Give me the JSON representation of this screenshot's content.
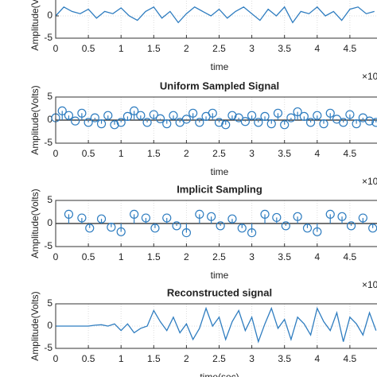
{
  "chart_data": [
    {
      "type": "line",
      "ylabel": "Amplitude(Volts)",
      "xlabel": "time",
      "x_multiplier": "×10",
      "x": [
        0,
        0.125,
        0.25,
        0.375,
        0.5,
        0.625,
        0.75,
        0.875,
        1,
        1.125,
        1.25,
        1.375,
        1.5,
        1.625,
        1.75,
        1.875,
        2,
        2.125,
        2.25,
        2.375,
        2.5,
        2.625,
        2.75,
        2.875,
        3,
        3.125,
        3.25,
        3.375,
        3.5,
        3.625,
        3.75,
        3.875,
        4,
        4.125,
        4.25,
        4.375,
        4.5,
        4.625,
        4.75,
        4.875
      ],
      "series": [
        {
          "color": "#2f7dc0",
          "values": [
            0,
            2,
            1,
            0.5,
            1.5,
            -0.5,
            1,
            0.5,
            1.8,
            0,
            -1,
            1,
            2,
            -0.5,
            1,
            -1.5,
            0.5,
            2,
            1,
            0,
            1.5,
            -0.5,
            1,
            2,
            0.5,
            -1,
            1.5,
            0,
            2,
            -1.5,
            1,
            0.5,
            2,
            0,
            1,
            -1,
            1.5,
            2,
            0.5,
            1
          ]
        }
      ],
      "xlim": [
        0,
        5
      ],
      "ylim": [
        -5,
        5
      ],
      "xticks": [
        0,
        0.5,
        1,
        1.5,
        2,
        2.5,
        3,
        3.5,
        4,
        4.5
      ],
      "yticks": [
        -5,
        0
      ],
      "grid": true
    },
    {
      "type": "stem",
      "title": "Uniform Sampled Signal",
      "ylabel": "Amplitude(Volts)",
      "xlabel": "time",
      "x_multiplier": "×10",
      "x": [
        0,
        0.1,
        0.2,
        0.3,
        0.4,
        0.5,
        0.6,
        0.7,
        0.8,
        0.9,
        1,
        1.1,
        1.2,
        1.3,
        1.4,
        1.5,
        1.6,
        1.7,
        1.8,
        1.9,
        2,
        2.1,
        2.2,
        2.3,
        2.4,
        2.5,
        2.6,
        2.7,
        2.8,
        2.9,
        3,
        3.1,
        3.2,
        3.3,
        3.4,
        3.5,
        3.6,
        3.7,
        3.8,
        3.9,
        4,
        4.1,
        4.2,
        4.3,
        4.4,
        4.5,
        4.6,
        4.7,
        4.8,
        4.9
      ],
      "series": [
        {
          "color": "#2f7dc0",
          "values": [
            0.5,
            2,
            1,
            -0.2,
            1.5,
            -0.5,
            0.5,
            -0.8,
            1,
            -1,
            -0.5,
            0.8,
            2,
            1,
            -0.5,
            1.2,
            0.3,
            -0.8,
            1,
            -0.5,
            0.2,
            1.5,
            -0.5,
            0.8,
            1.5,
            -0.5,
            -1,
            1,
            0.5,
            -0.3,
            1,
            -0.5,
            0.8,
            -0.8,
            1.5,
            -1,
            0.5,
            1.8,
            0.8,
            -0.5,
            1,
            -0.8,
            1.5,
            0.2,
            -0.5,
            1.2,
            -0.8,
            0.5,
            -0.2,
            -0.5
          ]
        }
      ],
      "xlim": [
        0,
        5
      ],
      "ylim": [
        -5,
        5
      ],
      "xticks": [
        0,
        0.5,
        1,
        1.5,
        2,
        2.5,
        3,
        3.5,
        4,
        4.5
      ],
      "yticks": [
        -5,
        0,
        5
      ],
      "grid": true
    },
    {
      "type": "stem",
      "title": "Implicit Sampling",
      "ylabel": "Amplitude(Volts)",
      "xlabel": "time",
      "x_multiplier": "×10",
      "x": [
        0.2,
        0.4,
        0.52,
        0.7,
        0.85,
        1.0,
        1.2,
        1.38,
        1.52,
        1.7,
        1.85,
        2.0,
        2.2,
        2.38,
        2.52,
        2.7,
        2.85,
        3.0,
        3.2,
        3.38,
        3.52,
        3.7,
        3.85,
        4.0,
        4.2,
        4.38,
        4.52,
        4.7,
        4.85
      ],
      "series": [
        {
          "color": "#2f7dc0",
          "values": [
            2,
            1.2,
            -1,
            1,
            -0.8,
            -1.8,
            2,
            1.2,
            -1,
            1.2,
            -0.5,
            -2,
            2,
            1.5,
            -0.5,
            1,
            -1,
            -2,
            2,
            1.3,
            -0.5,
            1.5,
            -1,
            -1.8,
            2,
            1.5,
            -0.5,
            1.2,
            -1
          ]
        }
      ],
      "xlim": [
        0,
        5
      ],
      "ylim": [
        -5,
        5
      ],
      "xticks": [
        0,
        0.5,
        1,
        1.5,
        2,
        2.5,
        3,
        3.5,
        4,
        4.5
      ],
      "yticks": [
        -5,
        0,
        5
      ],
      "grid": true
    },
    {
      "type": "line",
      "title": "Reconstructed signal",
      "ylabel": "Amplitude(Volts)",
      "xlabel": "time(sec)",
      "x": [
        0,
        0.1,
        0.2,
        0.3,
        0.4,
        0.5,
        0.6,
        0.7,
        0.8,
        0.9,
        1,
        1.1,
        1.2,
        1.3,
        1.4,
        1.5,
        1.6,
        1.7,
        1.8,
        1.9,
        2,
        2.1,
        2.2,
        2.3,
        2.4,
        2.5,
        2.6,
        2.7,
        2.8,
        2.9,
        3,
        3.1,
        3.2,
        3.3,
        3.4,
        3.5,
        3.6,
        3.7,
        3.8,
        3.9,
        4,
        4.1,
        4.2,
        4.3,
        4.4,
        4.5,
        4.6,
        4.7,
        4.8,
        4.9
      ],
      "series": [
        {
          "color": "#2f7dc0",
          "values": [
            0,
            0,
            0,
            0,
            0,
            0,
            0.2,
            0.3,
            0,
            0.5,
            -1,
            0.5,
            -1.5,
            -0.5,
            0,
            3.5,
            1,
            -1,
            2,
            -1.5,
            0.5,
            -3,
            -0.5,
            4,
            0,
            2,
            -3,
            1,
            3.5,
            -1,
            2,
            -3.5,
            0.5,
            4,
            -0.5,
            1.5,
            -3,
            2,
            0.5,
            -2,
            4,
            1,
            -1,
            3,
            -3.5,
            2,
            0.5,
            -2,
            3,
            -1
          ]
        }
      ],
      "xlim": [
        0,
        5
      ],
      "ylim": [
        -5,
        5
      ],
      "xticks": [
        0,
        0.5,
        1,
        1.5,
        2,
        2.5,
        3,
        3.5,
        4,
        4.5
      ],
      "yticks": [
        -5,
        0,
        5
      ],
      "grid": true
    }
  ]
}
